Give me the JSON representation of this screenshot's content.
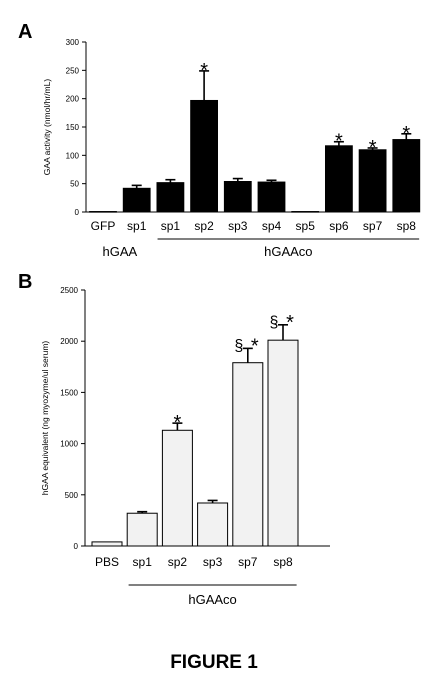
{
  "figure_caption": "FIGURE 1",
  "chart_data": [
    {
      "panel": "A",
      "type": "bar",
      "ylabel": "GAA activity (nmol/hr/mL)",
      "ylim": [
        0,
        300
      ],
      "yticks": [
        0,
        50,
        100,
        150,
        200,
        250,
        300
      ],
      "categories": [
        "GFP",
        "sp1",
        "sp1",
        "sp2",
        "sp3",
        "sp4",
        "sp5",
        "sp6",
        "sp7",
        "sp8"
      ],
      "values": [
        1,
        42,
        52,
        197,
        54,
        53,
        1,
        117,
        110,
        128
      ],
      "errors": [
        0,
        5,
        5,
        52,
        5,
        3,
        0,
        7,
        3,
        10
      ],
      "bar_color": "#000000",
      "significance": [
        "",
        "",
        "",
        "*",
        "",
        "",
        "",
        "*",
        "*",
        "*"
      ],
      "groups": [
        {
          "label": "hGAA",
          "underline": false,
          "start": 0,
          "end": 1
        },
        {
          "label": "hGAAco",
          "underline": true,
          "start": 2,
          "end": 9
        }
      ],
      "grid": false
    },
    {
      "panel": "B",
      "type": "bar",
      "ylabel": "hGAA equivalent  (ng myozyme/ul serum)",
      "ylim": [
        0,
        2500
      ],
      "yticks": [
        0,
        500,
        1000,
        1500,
        2000,
        2500
      ],
      "categories": [
        "PBS",
        "sp1",
        "sp2",
        "sp3",
        "sp7",
        "sp8"
      ],
      "values": [
        40,
        320,
        1130,
        420,
        1790,
        2010
      ],
      "errors": [
        0,
        15,
        70,
        25,
        140,
        150
      ],
      "bar_color": "#f2f2f2",
      "significance": [
        "",
        "",
        "*",
        "",
        "§ *",
        "§ *"
      ],
      "groups": [
        {
          "label": "hGAAco",
          "underline": true,
          "start": 1,
          "end": 5
        }
      ],
      "grid": false
    }
  ]
}
